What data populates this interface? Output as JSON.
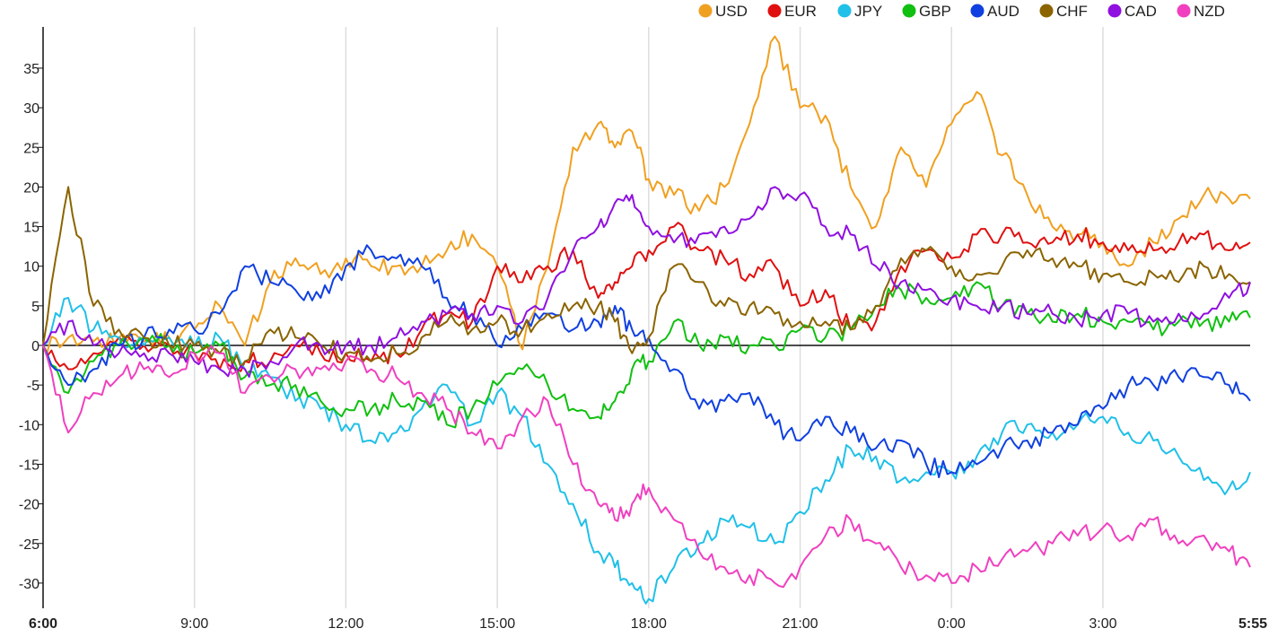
{
  "chart_data": {
    "type": "line",
    "title": "",
    "xlabel": "",
    "ylabel": "",
    "ylim": [
      -33,
      40
    ],
    "y_ticks": [
      35,
      30,
      25,
      20,
      15,
      10,
      5,
      0,
      -5,
      -10,
      -15,
      -20,
      -25,
      -30
    ],
    "x_ticks": [
      "6:00",
      "9:00",
      "12:00",
      "15:00",
      "18:00",
      "21:00",
      "0:00",
      "3:00",
      "5:55"
    ],
    "x_range_hours": [
      0,
      23.917
    ],
    "grid": "vertical",
    "legend": "top-right",
    "series": [
      {
        "name": "USD",
        "color": "#f0a020",
        "x": [
          0,
          0.5,
          1,
          1.5,
          2,
          2.5,
          3,
          3.5,
          4,
          4.5,
          5,
          5.5,
          6,
          6.5,
          7,
          7.5,
          8,
          8.5,
          9,
          9.5,
          10,
          10.5,
          11,
          11.33,
          11.67,
          12,
          12.5,
          13,
          13.5,
          14,
          14.5,
          15,
          15.5,
          16,
          16.5,
          17,
          17.5,
          18,
          18.5,
          19,
          19.5,
          20,
          20.5,
          21,
          21.5,
          22,
          22.5,
          23,
          23.5,
          23.917
        ],
        "values": [
          0,
          1,
          0.5,
          1,
          0.5,
          1,
          2,
          5,
          0,
          8,
          11,
          9,
          11,
          10,
          10,
          10,
          12,
          14,
          10,
          -0.5,
          10,
          25,
          28,
          25,
          27,
          21,
          19,
          17,
          20,
          28,
          39,
          30,
          29,
          20,
          15,
          25,
          20,
          28,
          32,
          24,
          19,
          15,
          14,
          13,
          10,
          13,
          16,
          19,
          18.5,
          18.5
        ]
      },
      {
        "name": "EUR",
        "color": "#e01010",
        "x": [
          0,
          0.5,
          1,
          1.5,
          2,
          2.5,
          3,
          3.5,
          4,
          4.5,
          5,
          5.5,
          6,
          6.5,
          7,
          7.5,
          8,
          8.5,
          9,
          9.5,
          10,
          10.5,
          11,
          11.33,
          11.67,
          12,
          12.5,
          13,
          13.5,
          14,
          14.5,
          15,
          15.5,
          16,
          16.5,
          17,
          17.5,
          18,
          18.5,
          19,
          19.5,
          20,
          20.5,
          21,
          21.5,
          22,
          22.5,
          23,
          23.5,
          23.917
        ],
        "values": [
          0,
          -3,
          -1,
          1,
          0,
          0,
          -1,
          -3,
          -2,
          -2,
          0,
          -1,
          -1,
          -2,
          -1,
          2,
          4,
          3,
          10,
          8,
          10,
          12,
          6,
          8,
          10,
          12,
          15,
          12,
          11,
          9,
          10,
          5,
          7,
          2,
          3,
          10,
          12,
          11,
          14,
          14,
          13,
          13,
          14,
          13,
          12,
          12,
          13,
          14,
          12,
          13
        ]
      },
      {
        "name": "JPY",
        "color": "#20c0e8",
        "x": [
          0,
          0.5,
          1,
          1.5,
          2,
          2.5,
          3,
          3.5,
          4,
          4.5,
          5,
          5.5,
          6,
          6.5,
          7,
          7.5,
          8,
          8.5,
          9,
          9.5,
          10,
          10.5,
          11,
          11.33,
          11.67,
          12,
          12.5,
          13,
          13.5,
          14,
          14.5,
          15,
          15.5,
          16,
          16.5,
          17,
          17.5,
          18,
          18.5,
          19,
          19.5,
          20,
          20.5,
          21,
          21.5,
          22,
          22.5,
          23,
          23.5,
          23.917
        ],
        "values": [
          0,
          6,
          2,
          1,
          0,
          1,
          0,
          1,
          -3,
          -4,
          -7,
          -8,
          -10,
          -12,
          -11,
          -8,
          -5,
          -10,
          -6,
          -9,
          -15,
          -20,
          -26,
          -28,
          -30,
          -32,
          -28,
          -25,
          -22,
          -23,
          -25,
          -21,
          -17,
          -13,
          -14,
          -17,
          -16,
          -16,
          -14,
          -11,
          -10,
          -11,
          -10,
          -9,
          -11,
          -12,
          -14,
          -17,
          -18,
          -16
        ]
      },
      {
        "name": "GBP",
        "color": "#10c010",
        "x": [
          0,
          0.5,
          1,
          1.5,
          2,
          2.5,
          3,
          3.5,
          4,
          4.5,
          5,
          5.5,
          6,
          6.5,
          7,
          7.5,
          8,
          8.5,
          9,
          9.5,
          10,
          10.5,
          11,
          11.33,
          11.67,
          12,
          12.5,
          13,
          13.5,
          14,
          14.5,
          15,
          15.5,
          16,
          16.5,
          17,
          17.5,
          18,
          18.5,
          19,
          19.5,
          20,
          20.5,
          21,
          21.5,
          22,
          22.5,
          23,
          23.5,
          23.917
        ],
        "values": [
          0,
          -6,
          -2,
          0,
          1,
          0,
          -1,
          0,
          -4,
          -5,
          -5,
          -7,
          -8,
          -8,
          -7,
          -7,
          -10,
          -8,
          -5,
          -3,
          -5,
          -8,
          -9,
          -7,
          -3,
          -2,
          3,
          0,
          1,
          0,
          0,
          2,
          1,
          2,
          5,
          7,
          6,
          6,
          8,
          5,
          4,
          3,
          4,
          3,
          3,
          2,
          3,
          3,
          3,
          3.5
        ]
      },
      {
        "name": "AUD",
        "color": "#1040e0",
        "x": [
          0,
          0.5,
          1,
          1.5,
          2,
          2.5,
          3,
          3.5,
          4,
          4.5,
          5,
          5.5,
          6,
          6.5,
          7,
          7.5,
          8,
          8.5,
          9,
          9.5,
          10,
          10.5,
          11,
          11.33,
          11.67,
          12,
          12.5,
          13,
          13.5,
          14,
          14.5,
          15,
          15.5,
          16,
          16.5,
          17,
          17.5,
          18,
          18.5,
          19,
          19.5,
          20,
          20.5,
          21,
          21.5,
          22,
          22.5,
          23,
          23.5,
          23.917
        ],
        "values": [
          0,
          -5,
          -3,
          0,
          1,
          2,
          2,
          4,
          10,
          8,
          7,
          6,
          10,
          12,
          11,
          10,
          6,
          4,
          0,
          2,
          4,
          2,
          3,
          5,
          2,
          1,
          -3,
          -8,
          -7,
          -6,
          -10,
          -12,
          -9,
          -11,
          -13,
          -12,
          -15,
          -16,
          -15,
          -13,
          -12,
          -11,
          -10,
          -8,
          -5,
          -5,
          -4,
          -4,
          -5,
          -7
        ]
      },
      {
        "name": "CHF",
        "color": "#8b6400",
        "x": [
          0,
          0.5,
          1,
          1.5,
          2,
          2.5,
          3,
          3.5,
          4,
          4.5,
          5,
          5.5,
          6,
          6.5,
          7,
          7.5,
          8,
          8.5,
          9,
          9.5,
          10,
          10.5,
          11,
          11.33,
          11.67,
          12,
          12.5,
          13,
          13.5,
          14,
          14.5,
          15,
          15.5,
          16,
          16.5,
          17,
          17.5,
          18,
          18.5,
          19,
          19.5,
          20,
          20.5,
          21,
          21.5,
          22,
          22.5,
          23,
          23.5,
          23.917
        ],
        "values": [
          0,
          20,
          5,
          2,
          1,
          0,
          0,
          -1,
          -2,
          2,
          1,
          0,
          -1,
          -2,
          -1,
          1,
          3,
          2,
          3,
          2,
          4,
          5,
          5,
          3,
          -1,
          1,
          10,
          8,
          5,
          5,
          4,
          3,
          3,
          2,
          5,
          11,
          12,
          10,
          9,
          10,
          12,
          11,
          10,
          9,
          8,
          9,
          8,
          10,
          9,
          8
        ]
      },
      {
        "name": "CAD",
        "color": "#9010e0",
        "x": [
          0,
          0.5,
          1,
          1.5,
          2,
          2.5,
          3,
          3.5,
          4,
          4.5,
          5,
          5.5,
          6,
          6.5,
          7,
          7.5,
          8,
          8.5,
          9,
          9.5,
          10,
          10.5,
          11,
          11.33,
          11.67,
          12,
          12.5,
          13,
          13.5,
          14,
          14.5,
          15,
          15.5,
          16,
          16.5,
          17,
          17.5,
          18,
          18.5,
          19,
          19.5,
          20,
          20.5,
          21,
          21.5,
          22,
          22.5,
          23,
          23.5,
          23.917
        ],
        "values": [
          0,
          3,
          0,
          -1,
          -1,
          -1,
          -2,
          -3,
          -3,
          -2,
          0,
          0,
          0,
          0,
          1,
          3,
          4,
          4,
          5,
          3,
          6,
          12,
          15,
          18,
          19,
          15,
          13,
          14,
          15,
          16,
          20,
          19,
          15,
          14,
          10,
          8,
          7,
          6,
          5,
          5,
          4,
          4,
          3,
          4,
          4,
          3,
          4,
          4,
          6,
          8
        ]
      },
      {
        "name": "NZD",
        "color": "#f040c0",
        "x": [
          0,
          0.5,
          1,
          1.5,
          2,
          2.5,
          3,
          3.5,
          4,
          4.5,
          5,
          5.5,
          6,
          6.5,
          7,
          7.5,
          8,
          8.5,
          9,
          9.5,
          10,
          10.5,
          11,
          11.33,
          11.67,
          12,
          12.5,
          13,
          13.5,
          14,
          14.5,
          15,
          15.5,
          16,
          16.5,
          17,
          17.5,
          18,
          18.5,
          19,
          19.5,
          20,
          20.5,
          21,
          21.5,
          22,
          22.5,
          23,
          23.5,
          23.917
        ],
        "values": [
          0,
          -11,
          -6,
          -4,
          -3,
          -4,
          -1,
          -1,
          -6,
          -4,
          -3,
          -3,
          -2,
          -3,
          -4,
          -6,
          -8,
          -11,
          -13,
          -9,
          -7,
          -15,
          -20,
          -22,
          -20,
          -18,
          -22,
          -26,
          -28,
          -29,
          -30,
          -28,
          -24,
          -22,
          -25,
          -28,
          -29,
          -30,
          -28,
          -27,
          -26,
          -25,
          -24,
          -23,
          -24,
          -22,
          -25,
          -24,
          -26,
          -28
        ]
      }
    ]
  }
}
